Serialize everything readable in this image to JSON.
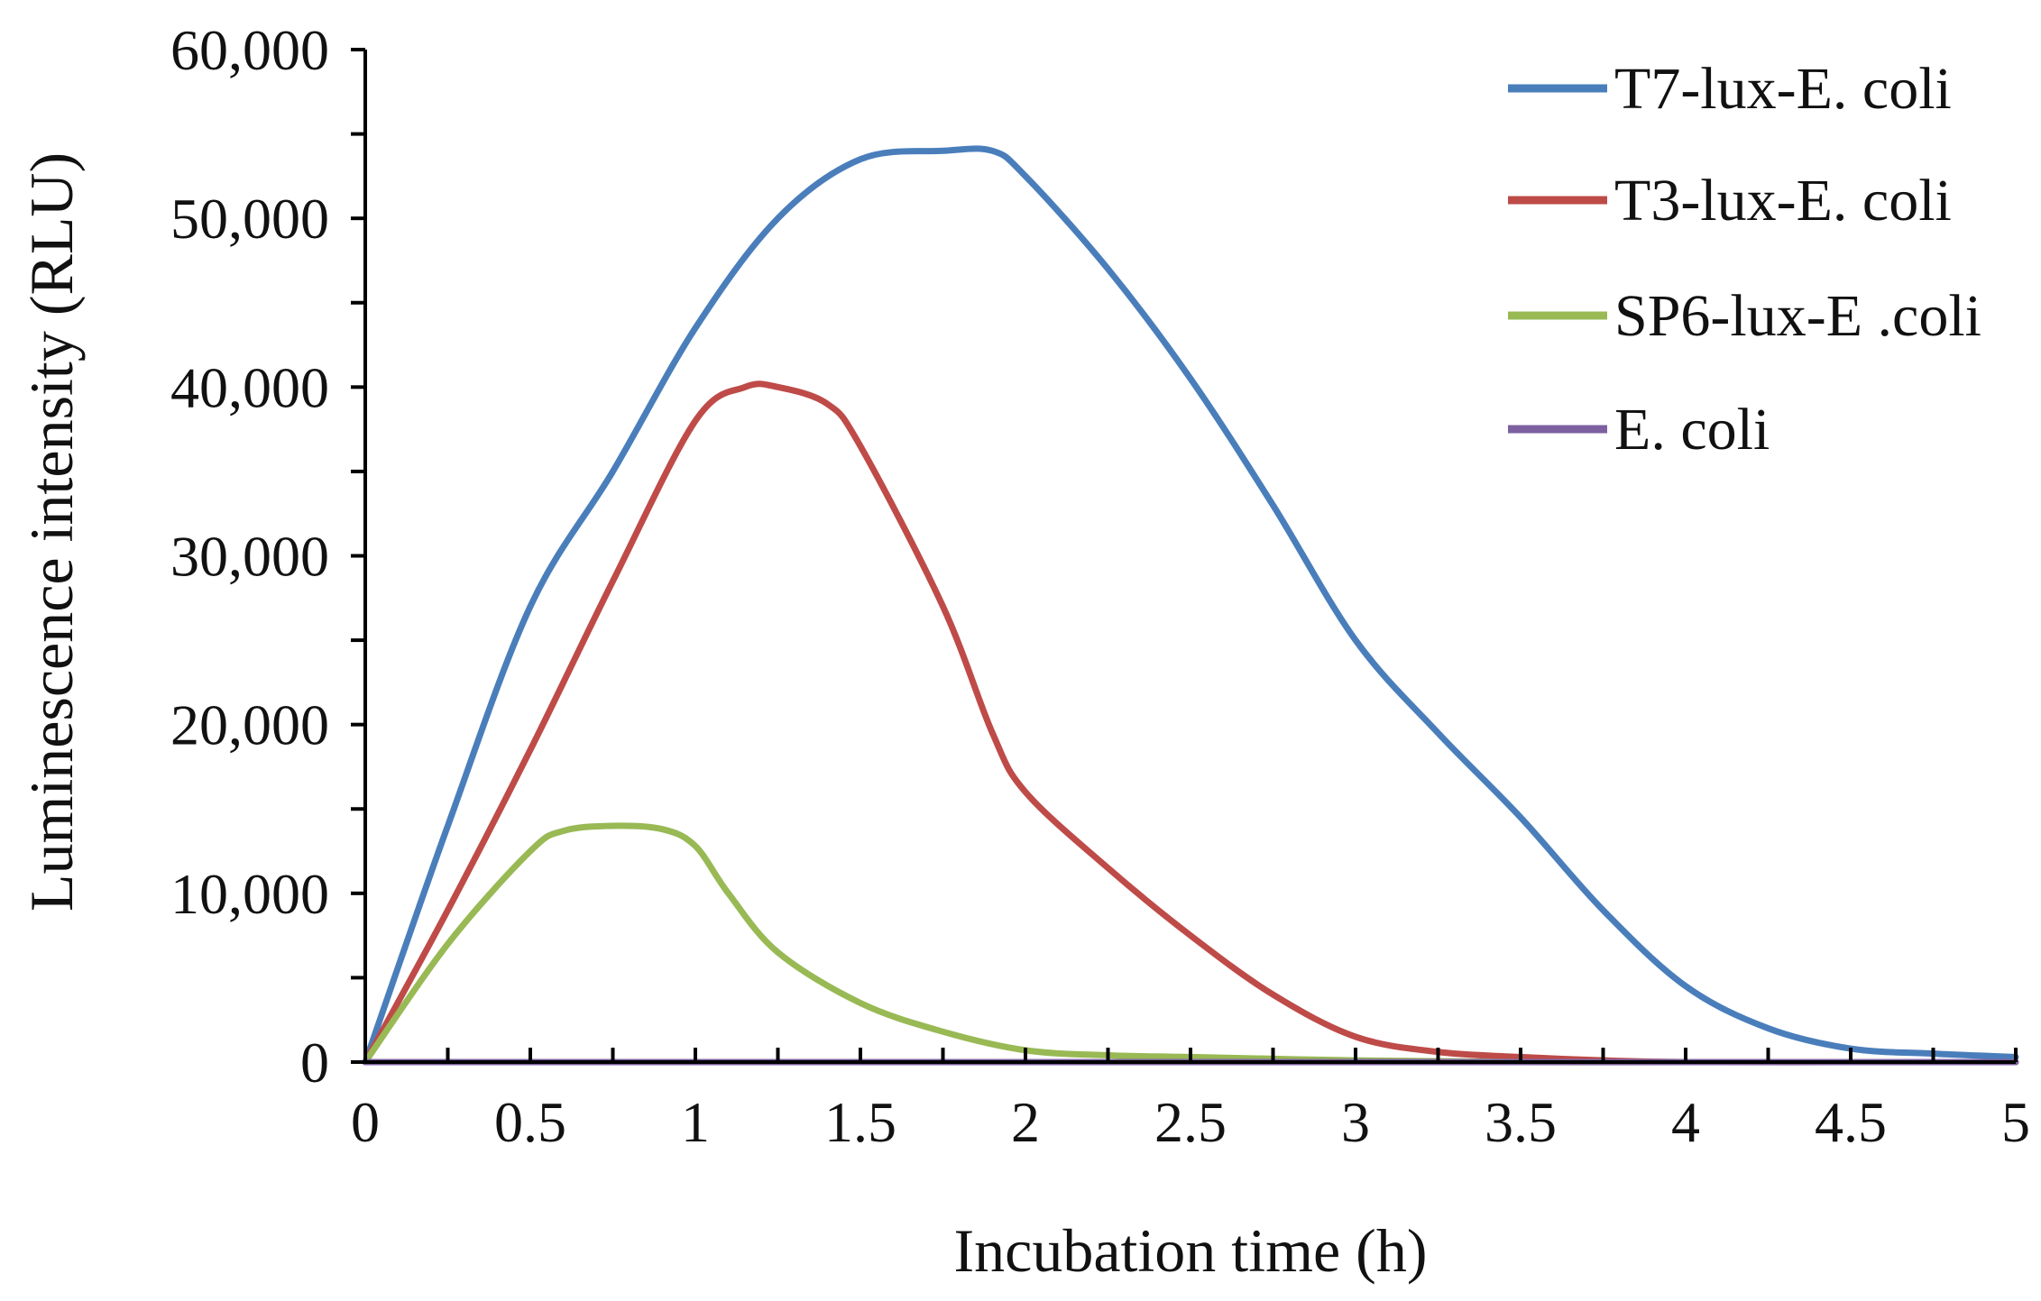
{
  "chart_data": {
    "type": "line",
    "title": "",
    "xlabel": "Incubation time (h)",
    "ylabel": "Luminescence intensity (RLU)",
    "xlim": [
      0,
      5
    ],
    "ylim": [
      0,
      60000
    ],
    "x_ticks": [
      0,
      0.5,
      1,
      1.5,
      2,
      2.5,
      3,
      3.5,
      4,
      4.5,
      5
    ],
    "x_tick_labels": [
      "0",
      "0.5",
      "1",
      "1.5",
      "2",
      "2.5",
      "3",
      "3.5",
      "4",
      "4.5",
      "5"
    ],
    "y_ticks": [
      0,
      10000,
      20000,
      30000,
      40000,
      50000,
      60000
    ],
    "y_tick_labels": [
      "0",
      "10,000",
      "20,000",
      "30,000",
      "40,000",
      "50,000",
      "60,000"
    ],
    "grid": false,
    "legend_position": "top-right",
    "series": [
      {
        "name": "T7-lux-E. coli",
        "color": "#4a7ebb",
        "x": [
          0,
          0.25,
          0.5,
          0.75,
          1.0,
          1.25,
          1.5,
          1.75,
          1.9,
          2.0,
          2.25,
          2.5,
          2.75,
          3.0,
          3.25,
          3.5,
          3.75,
          4.0,
          4.25,
          4.5,
          4.75,
          5.0
        ],
        "y": [
          0,
          14000,
          27000,
          35000,
          43500,
          50000,
          53500,
          54000,
          54000,
          52500,
          47000,
          40500,
          33000,
          25000,
          19500,
          14500,
          9000,
          4500,
          2000,
          800,
          500,
          300
        ]
      },
      {
        "name": "T3-lux-E. coli",
        "color": "#be4b48",
        "x": [
          0,
          0.25,
          0.5,
          0.75,
          1.0,
          1.15,
          1.25,
          1.4,
          1.5,
          1.75,
          1.9,
          2.0,
          2.25,
          2.5,
          2.75,
          3.0,
          3.25,
          3.5,
          3.75,
          4.0,
          4.5,
          5.0
        ],
        "y": [
          0,
          9000,
          18500,
          28500,
          38000,
          40000,
          40000,
          39000,
          36500,
          27000,
          19500,
          16000,
          11500,
          7500,
          4000,
          1500,
          600,
          300,
          100,
          0,
          0,
          0
        ]
      },
      {
        "name": "SP6-lux-E .coli",
        "color": "#98b954",
        "x": [
          0,
          0.25,
          0.5,
          0.6,
          0.75,
          0.9,
          1.0,
          1.1,
          1.25,
          1.5,
          1.75,
          2.0,
          2.25,
          2.5,
          3.0,
          3.5,
          4.0,
          4.5,
          5.0
        ],
        "y": [
          0,
          7000,
          12500,
          13700,
          14000,
          13800,
          12800,
          10000,
          6500,
          3500,
          1800,
          700,
          400,
          300,
          100,
          0,
          0,
          0,
          0
        ]
      },
      {
        "name": "E. coli",
        "color": "#7d60a0",
        "x": [
          0,
          5
        ],
        "y": [
          0,
          0
        ]
      }
    ]
  }
}
